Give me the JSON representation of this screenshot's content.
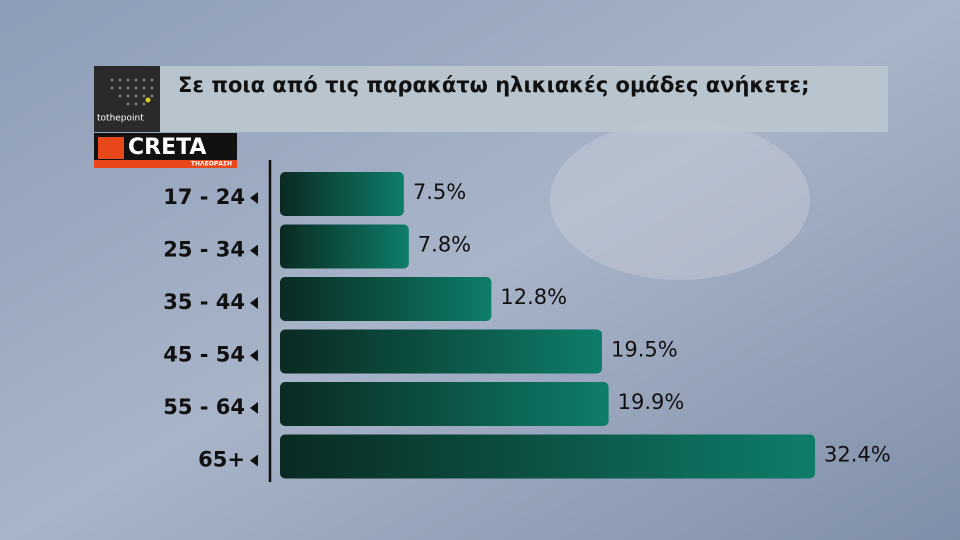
{
  "chart_data": {
    "type": "bar",
    "orientation": "horizontal",
    "title": "Σε ποια από τις παρακάτω ηλικιακές ομάδες ανήκετε;",
    "categories": [
      "17 - 24",
      "25 - 34",
      "35 - 44",
      "45 - 54",
      "55 - 64",
      "65+"
    ],
    "values": [
      7.5,
      7.8,
      12.8,
      19.5,
      19.9,
      32.4
    ],
    "value_labels": [
      "7.5%",
      "7.8%",
      "12.8%",
      "19.5%",
      "19.9%",
      "32.4%"
    ],
    "color": "#0e7d6a"
  },
  "logos": {
    "pollster": "tothepoint",
    "channel": "CRETA",
    "channel_subtitle": "ΤΗΛΕΟΡΑΣΗ"
  }
}
